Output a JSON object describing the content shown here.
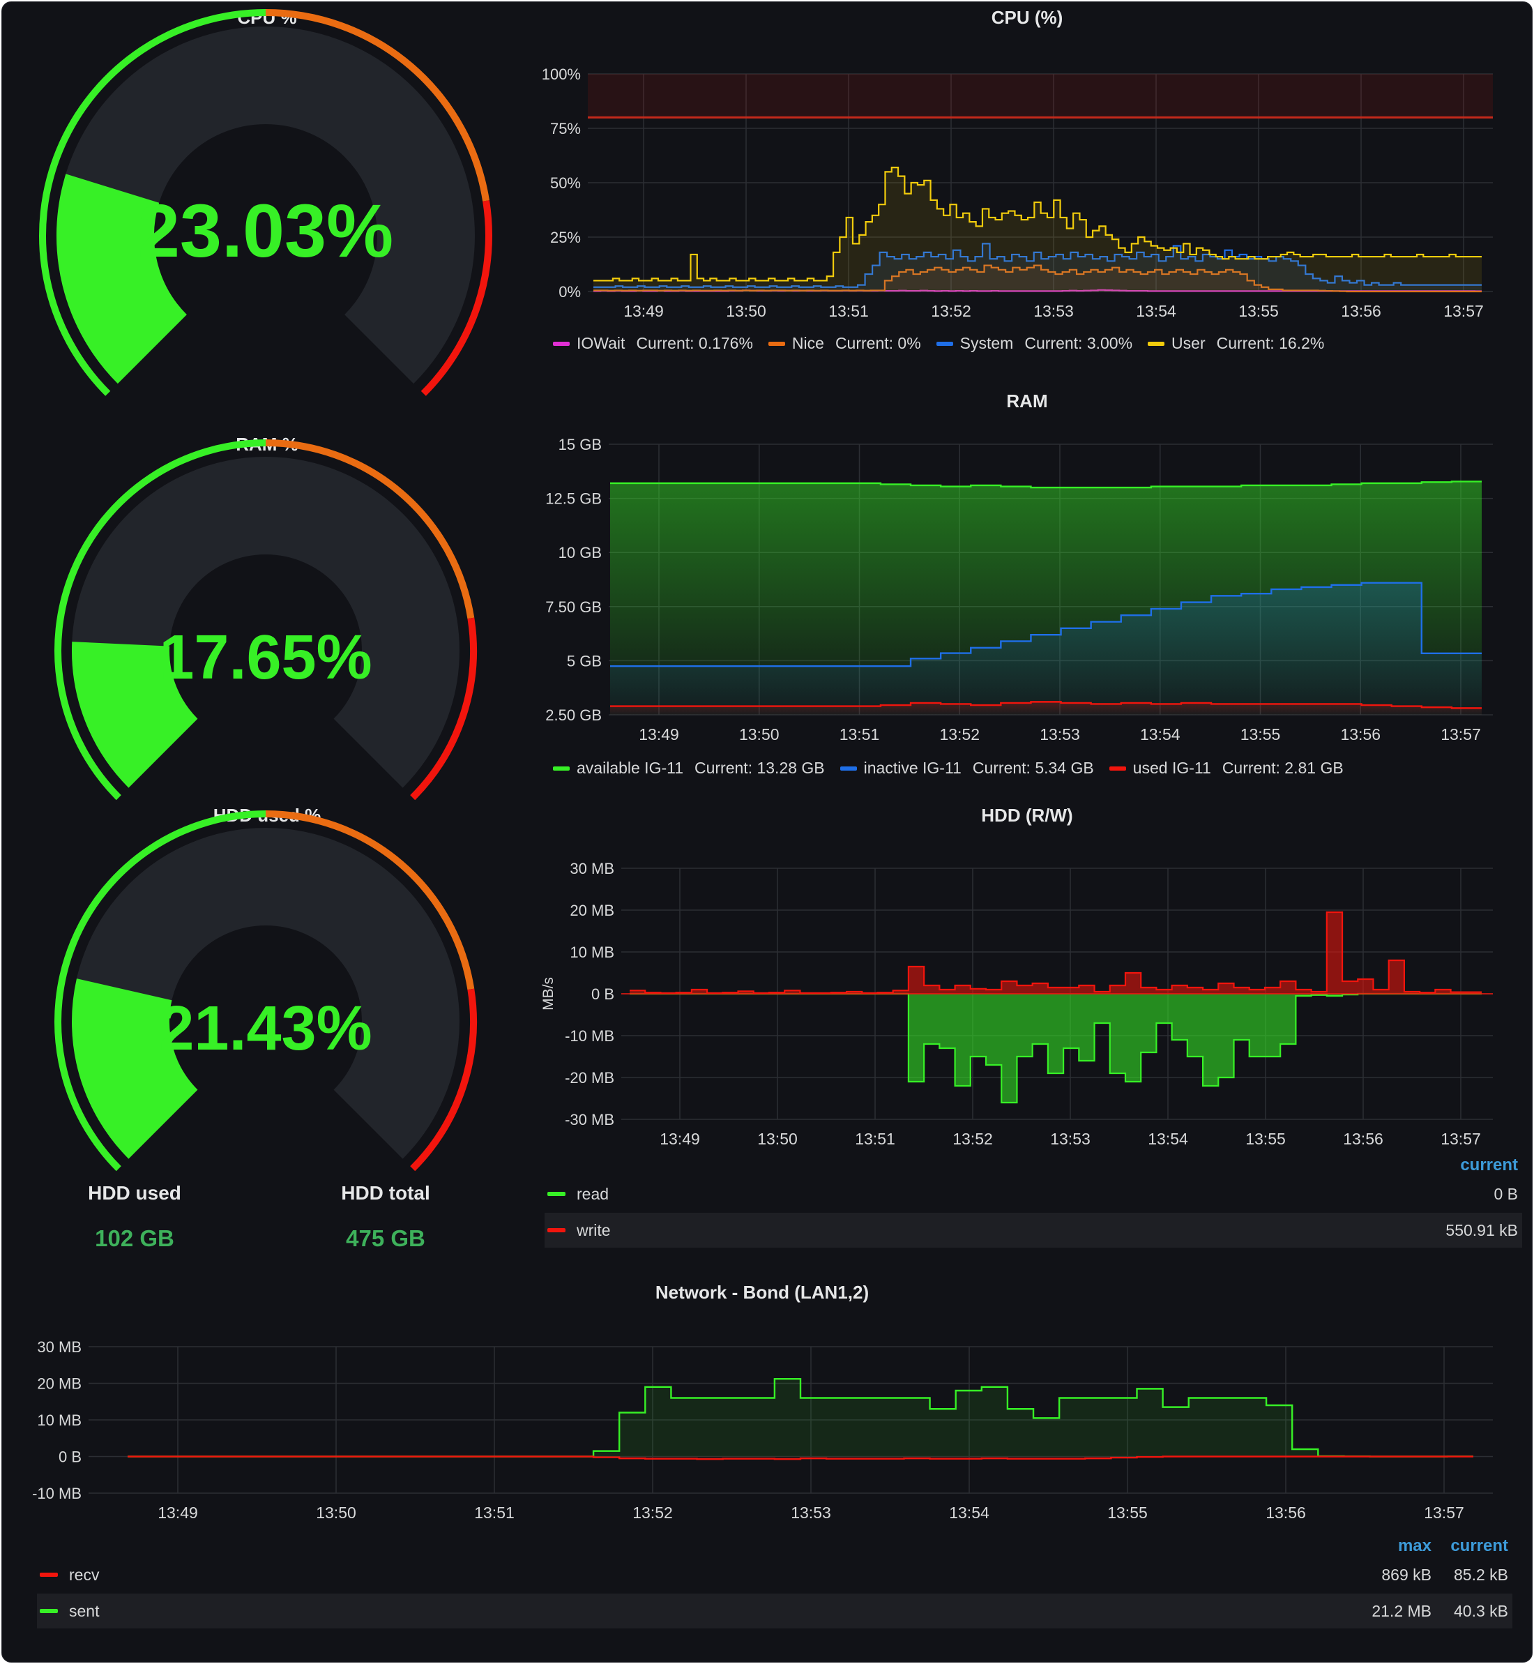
{
  "colors": {
    "green": "#37f026",
    "orange": "#ea6c12",
    "red": "#f2150d",
    "gauge_track": "#22252b",
    "value_green": "#3eb15b",
    "magenta": "#e12fd4",
    "blue": "#1f6fe8",
    "yellow": "#f2cc0c",
    "link_blue": "#3d9bd9"
  },
  "gauges": [
    {
      "title": "CPU %",
      "value_text": "23.03%",
      "percent": 23.03
    },
    {
      "title": "RAM %",
      "value_text": "17.65%",
      "percent": 17.65
    },
    {
      "title": "HDD used %",
      "value_text": "21.43%",
      "percent": 21.43
    }
  ],
  "hdd_stats": {
    "used_label": "HDD used",
    "used_value": "102 GB",
    "total_label": "HDD total",
    "total_value": "475 GB"
  },
  "chart_data": [
    {
      "type": "line",
      "title": "CPU (%)",
      "x_ticks": [
        "13:49",
        "13:50",
        "13:51",
        "13:52",
        "13:53",
        "13:54",
        "13:55",
        "13:56",
        "13:57"
      ],
      "y_ticks": [
        "0%",
        "25%",
        "50%",
        "75%",
        "100%"
      ],
      "ylim": [
        0,
        100
      ],
      "threshold": 80,
      "series": [
        {
          "name": "IOWait",
          "current": "Current: 0.176%",
          "color": "#e12fd4",
          "values": [
            0.2,
            0.3,
            0.2,
            0.3,
            0.2,
            0.2,
            0.3,
            0.2,
            0.2,
            0.3,
            0.2,
            0.2,
            0.3,
            0.2,
            0.2,
            0.2,
            0.2,
            0.2,
            0.2,
            0.3,
            0.3,
            0.5,
            0.4,
            0.3,
            0.3,
            0.4,
            0.3,
            0.4,
            0.3,
            0.4,
            0.3,
            0.3,
            0.4,
            0.3,
            0.3,
            0.4,
            0.3,
            0.4,
            0.3,
            0.3,
            0.4,
            0.3,
            0.3,
            0.4,
            0.3,
            0.3,
            0.4,
            0.3,
            0.2,
            0.3,
            0.2,
            0.3,
            0.2,
            0.3,
            0.2,
            0.2,
            0.3,
            0.2,
            0.2,
            0.2,
            0.2,
            0.2,
            0.2,
            0.2,
            0.2,
            0.2,
            0.3,
            0.4,
            0.3,
            0.4,
            0.5,
            0.7,
            0.6,
            0.5,
            0.4,
            0.3,
            0.3,
            0.3,
            0.2,
            0.2,
            0.2,
            0.2,
            0.2,
            0.2,
            0.2,
            0.2,
            0.2,
            0.2,
            0.2,
            0.2,
            0.2,
            0.2,
            0.2,
            0.2,
            0.2,
            0.2,
            0.2,
            0.2,
            0.2,
            0.2,
            0.2,
            0.2,
            0.2,
            0.2,
            0.2,
            0.2,
            0.2,
            0.2,
            0.2,
            0.2,
            0.2,
            0.2,
            0.2,
            0.2,
            0.2,
            0.2,
            0.2,
            0.2,
            0.2,
            0.2,
            0.2,
            0.2,
            0.2,
            0.2,
            0.18
          ]
        },
        {
          "name": "Nice",
          "current": "Current: 0%",
          "color": "#ea6c12",
          "values": [
            0.5,
            0.5,
            0.4,
            0.5,
            0.4,
            0.5,
            0.4,
            0.5,
            0.5,
            0.4,
            0.5,
            0.4,
            0.5,
            0.4,
            0.5,
            0.4,
            0.4,
            0.5,
            0.4,
            0.5,
            0.4,
            0.5,
            0.4,
            0.5,
            0.4,
            0.5,
            0.5,
            0.4,
            0.5,
            0.4,
            0.5,
            0.4,
            0.5,
            0.4,
            0.4,
            0.5,
            0.4,
            0.5,
            0.4,
            0.5,
            0.5,
            5,
            7,
            9,
            10,
            8,
            9,
            10,
            11,
            10,
            9,
            10,
            11,
            10,
            9,
            12,
            11,
            10,
            9,
            11,
            10,
            11,
            12,
            10,
            9,
            8,
            9,
            10,
            8,
            9,
            10,
            9,
            10,
            11,
            9,
            10,
            9,
            8,
            9,
            10,
            8,
            9,
            10,
            9,
            8,
            10,
            9,
            8,
            9,
            10,
            9,
            8,
            5,
            3,
            2,
            1,
            1,
            0.5,
            0.5,
            0.5,
            0.5,
            0.5,
            0.4,
            0.3,
            0.2,
            0.1,
            0,
            0,
            0,
            0,
            0,
            0,
            0,
            0,
            0,
            0,
            0,
            0,
            0,
            0,
            0,
            0,
            0,
            0,
            0
          ]
        },
        {
          "name": "System",
          "current": "Current: 3.00%",
          "color": "#1f6fe8",
          "values": [
            2,
            2,
            2,
            2.5,
            2,
            2,
            2.5,
            2,
            2,
            2.5,
            2,
            2,
            2.5,
            2,
            2,
            2.5,
            2,
            2,
            2.5,
            2,
            2,
            2.5,
            2,
            2,
            2.5,
            2,
            2,
            2.5,
            2,
            2,
            2.5,
            2,
            2,
            2.5,
            2,
            2,
            3,
            8,
            12,
            18,
            16,
            15,
            17,
            15,
            16,
            18,
            16,
            17,
            15,
            19,
            16,
            14,
            16,
            22,
            15,
            16,
            14,
            17,
            16,
            14,
            18,
            15,
            16,
            17,
            15,
            18,
            16,
            17,
            15,
            16,
            14,
            17,
            16,
            15,
            18,
            16,
            17,
            14,
            16,
            21,
            15,
            16,
            14,
            17,
            16,
            15,
            19,
            16,
            17,
            15,
            16,
            15,
            14,
            16,
            15,
            14,
            12,
            8,
            6,
            5,
            4,
            7,
            5,
            4,
            5,
            3,
            4,
            3,
            3,
            4,
            3,
            3,
            3,
            3,
            3,
            3,
            3,
            3,
            3,
            3,
            3
          ]
        },
        {
          "name": "User",
          "current": "Current: 16.2%",
          "color": "#f2cc0c",
          "values": [
            5,
            5,
            5,
            6,
            5,
            5,
            6,
            5,
            5,
            6,
            5,
            5,
            6,
            5,
            5,
            17,
            6,
            5,
            6,
            5,
            5,
            6,
            5,
            5,
            6,
            5,
            5,
            6,
            5,
            5,
            6,
            5,
            5,
            6,
            5,
            5,
            7,
            18,
            25,
            34,
            22,
            26,
            32,
            35,
            40,
            55,
            57,
            53,
            45,
            50,
            49,
            51,
            42,
            38,
            35,
            40,
            34,
            36,
            32,
            30,
            38,
            34,
            33,
            36,
            37,
            35,
            33,
            34,
            41,
            36,
            34,
            42,
            34,
            29,
            36,
            33,
            25,
            28,
            30,
            26,
            24,
            20,
            18,
            22,
            25,
            23,
            21,
            20,
            19,
            20,
            18,
            22,
            17,
            20,
            19,
            17,
            16,
            15,
            16,
            15,
            15,
            16,
            15,
            15,
            16,
            16,
            17,
            18,
            17,
            16,
            16,
            17,
            17,
            16,
            16,
            16,
            16,
            17,
            16,
            16,
            16,
            16,
            17,
            16,
            16,
            16,
            16,
            17,
            16,
            16,
            16,
            16,
            17,
            16,
            16,
            16,
            16
          ]
        }
      ]
    },
    {
      "type": "area",
      "title": "RAM",
      "x_ticks": [
        "13:49",
        "13:50",
        "13:51",
        "13:52",
        "13:53",
        "13:54",
        "13:55",
        "13:56",
        "13:57"
      ],
      "y_ticks": [
        "2.50 GB",
        "5 GB",
        "7.50 GB",
        "10 GB",
        "12.5 GB",
        "15 GB"
      ],
      "ylim": [
        2.5,
        15
      ],
      "series": [
        {
          "name": "available IG-11",
          "current": "Current: 13.28 GB",
          "color": "#37f026",
          "values": [
            13.2,
            13.2,
            13.2,
            13.2,
            13.2,
            13.2,
            13.2,
            13.2,
            13.2,
            13.15,
            13.1,
            13.05,
            13.1,
            13.05,
            13.0,
            13.0,
            13.0,
            13.0,
            13.05,
            13.05,
            13.05,
            13.1,
            13.1,
            13.1,
            13.15,
            13.2,
            13.2,
            13.25,
            13.28
          ]
        },
        {
          "name": "inactive IG-11",
          "current": "Current: 5.34 GB",
          "color": "#1f6fe8",
          "values": [
            4.75,
            4.75,
            4.75,
            4.75,
            4.75,
            4.75,
            4.75,
            4.75,
            4.75,
            4.75,
            5.1,
            5.35,
            5.6,
            5.9,
            6.2,
            6.5,
            6.8,
            7.1,
            7.4,
            7.7,
            8.0,
            8.1,
            8.3,
            8.4,
            8.5,
            8.6,
            8.6,
            5.34,
            5.34
          ]
        },
        {
          "name": "used IG-11",
          "current": "Current: 2.81 GB",
          "color": "#f2150d",
          "values": [
            2.9,
            2.9,
            2.9,
            2.9,
            2.9,
            2.9,
            2.9,
            2.9,
            2.9,
            2.95,
            3.05,
            3.0,
            2.95,
            3.05,
            3.1,
            3.05,
            3.0,
            3.05,
            3.0,
            3.05,
            3.0,
            3.0,
            3.0,
            3.0,
            3.0,
            2.95,
            2.9,
            2.85,
            2.81
          ]
        }
      ]
    },
    {
      "type": "bar",
      "title": "HDD (R/W)",
      "ylabel": "MB/s",
      "x_ticks": [
        "13:49",
        "13:50",
        "13:51",
        "13:52",
        "13:53",
        "13:54",
        "13:55",
        "13:56",
        "13:57"
      ],
      "y_ticks": [
        "-30 MB",
        "-20 MB",
        "-10 MB",
        "0 B",
        "10 MB",
        "20 MB",
        "30 MB"
      ],
      "ylim": [
        -30,
        30
      ],
      "legend_header": "current",
      "series": [
        {
          "name": "read",
          "current": "0 B",
          "color": "#37f026",
          "values": [
            0,
            0,
            0,
            0,
            0,
            0,
            0,
            0,
            0,
            0,
            0,
            0,
            0,
            0,
            0,
            0,
            0,
            0,
            -21,
            -12,
            -13,
            -22,
            -15,
            -17,
            -26,
            -15,
            -12,
            -19,
            -13,
            -16,
            -7,
            -19,
            -21,
            -14,
            -7,
            -11,
            -15,
            -22,
            -20,
            -11,
            -15,
            -15,
            -12,
            -0.5,
            -0.3,
            -0.5,
            -0.2,
            0,
            0,
            0,
            0,
            0,
            0,
            0,
            0
          ]
        },
        {
          "name": "write",
          "current": "550.91 kB",
          "color": "#f2150d",
          "values": [
            0.8,
            0.3,
            0.2,
            0.3,
            1,
            0.2,
            0.3,
            0.6,
            0.2,
            0.3,
            0.8,
            0.2,
            0.2,
            0.3,
            0.5,
            0.2,
            0.3,
            0.8,
            6.5,
            2,
            1,
            2,
            1.2,
            1,
            3,
            2,
            2.5,
            1.5,
            1.5,
            2,
            0.5,
            2,
            5,
            1.5,
            1,
            2,
            1.5,
            1,
            2.5,
            1.5,
            1,
            1.5,
            3,
            1,
            0.5,
            19.5,
            3,
            3.5,
            1,
            8,
            0.5,
            0.3,
            1,
            0.4,
            0.4
          ]
        }
      ]
    },
    {
      "type": "area",
      "title": "Network - Bond (LAN1,2)",
      "x_ticks": [
        "13:49",
        "13:50",
        "13:51",
        "13:52",
        "13:53",
        "13:54",
        "13:55",
        "13:56",
        "13:57"
      ],
      "y_ticks": [
        "-10 MB",
        "0 B",
        "10 MB",
        "20 MB",
        "30 MB"
      ],
      "ylim": [
        -10,
        30
      ],
      "legend_headers": [
        "max",
        "current"
      ],
      "series": [
        {
          "name": "recv",
          "max": "869 kB",
          "current": "85.2 kB",
          "color": "#f2150d",
          "values": [
            0,
            0,
            0,
            0,
            0,
            0,
            0,
            0,
            0,
            0,
            0,
            0,
            0,
            0,
            0,
            0,
            0,
            0,
            -0.2,
            -0.5,
            -0.6,
            -0.6,
            -0.7,
            -0.6,
            -0.6,
            -0.7,
            -0.5,
            -0.6,
            -0.6,
            -0.6,
            -0.5,
            -0.6,
            -0.6,
            -0.5,
            -0.6,
            -0.6,
            -0.6,
            -0.5,
            -0.3,
            -0.1,
            0,
            0,
            0,
            0,
            0,
            0,
            0,
            0,
            0,
            0,
            0,
            0
          ]
        },
        {
          "name": "sent",
          "max": "21.2 MB",
          "current": "40.3 kB",
          "color": "#37f026",
          "values": [
            0,
            0,
            0,
            0,
            0,
            0,
            0,
            0,
            0,
            0,
            0,
            0,
            0,
            0,
            0,
            0,
            0,
            0,
            1.5,
            12,
            19,
            16,
            16,
            16,
            16,
            21.2,
            16,
            16,
            16,
            16,
            16,
            13,
            18,
            19,
            13,
            10.5,
            16,
            16,
            16,
            18.5,
            13.5,
            16,
            16,
            16,
            14,
            2,
            0.1,
            0.05,
            0,
            0,
            0,
            0.04
          ]
        }
      ]
    }
  ]
}
